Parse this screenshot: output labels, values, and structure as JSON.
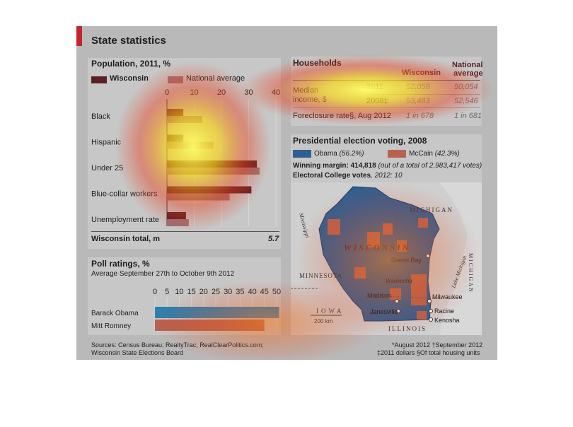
{
  "title": "State statistics",
  "population": {
    "heading": "Population, 2011, %",
    "legend": [
      "Wisconsin",
      "National average"
    ],
    "colors": {
      "wisconsin": "#5b1f24",
      "national": "#9c6f73"
    },
    "total_label": "Wisconsin total, m",
    "total_value": "5.7"
  },
  "households": {
    "heading": "Households",
    "col_wisconsin": "Wisconsin",
    "col_national_1": "National",
    "col_national_2": "average",
    "median_label_1": "Median",
    "median_label_2": "income, $",
    "rows": [
      {
        "year": "2011",
        "wisconsin": "52,058",
        "national": "50,054"
      },
      {
        "year": "2008‡",
        "wisconsin": "53,483",
        "national": "52,546"
      }
    ],
    "foreclosure_label": "Foreclosure rate§, Aug 2012",
    "foreclosure_wisconsin": "1 in 678",
    "foreclosure_national": "1 in 681"
  },
  "election": {
    "heading": "Presidential election voting, 2008",
    "obama_legend": "Obama",
    "obama_pct": "(56.2%)",
    "mccain_legend": "McCain",
    "mccain_pct": "(42.3%)",
    "obama_color": "#2f5f92",
    "mccain_color": "#b5624f",
    "margin_label": "Winning margin: 414,818",
    "margin_detail": "(out of a total of 2,983,417 votes)",
    "college_label": "Electoral College votes",
    "college_detail": ", 2012: 10"
  },
  "map": {
    "state_label": "WISCONSIN",
    "michigan_top": "MICHIGAN",
    "michigan_side": "MICHIGAN",
    "minnesota": "MINNESOTA",
    "iowa": "IOWA",
    "illinois": "ILLINOIS",
    "mississippi": "Mississippi",
    "lake_michigan": "Lake Michigan",
    "scale": "200 km",
    "cities": [
      "Green Bay",
      "Waukesha",
      "Madison",
      "Milwaukee",
      "Janesville",
      "Racine",
      "Kenosha"
    ]
  },
  "poll": {
    "heading": "Poll ratings, %",
    "subtitle": "Average September 27th to October 9th 2012"
  },
  "sources": {
    "line1": "Sources: Census Bureau; RealtyTrac; RealClearPolitics.com;",
    "line2": "Wisconsin State Elections Board"
  },
  "footnotes": {
    "line1": "*August 2012   †September 2012",
    "line2": "‡2011 dollars   §Of total housing units"
  },
  "chart_data": [
    {
      "type": "bar",
      "orientation": "horizontal",
      "title": "Population, 2011, %",
      "categories": [
        "Black",
        "Hispanic",
        "Under 25",
        "Blue-collar workers",
        "Unemployment rate"
      ],
      "series": [
        {
          "name": "Wisconsin",
          "values": [
            6,
            6,
            33,
            31,
            7
          ]
        },
        {
          "name": "National average",
          "values": [
            13,
            17,
            34,
            23,
            8
          ]
        }
      ],
      "xlim": [
        0,
        40
      ],
      "ticks": [
        0,
        10,
        20,
        30,
        40
      ]
    },
    {
      "type": "bar",
      "orientation": "horizontal",
      "title": "Poll ratings, %",
      "categories": [
        "Barack Obama",
        "Mitt Romney"
      ],
      "values": [
        51,
        45
      ],
      "colors": [
        "#2d7fb0",
        "#b5624f"
      ],
      "xlim": [
        0,
        50
      ],
      "ticks": [
        0,
        5,
        10,
        15,
        20,
        25,
        30,
        35,
        40,
        45,
        50
      ]
    }
  ]
}
